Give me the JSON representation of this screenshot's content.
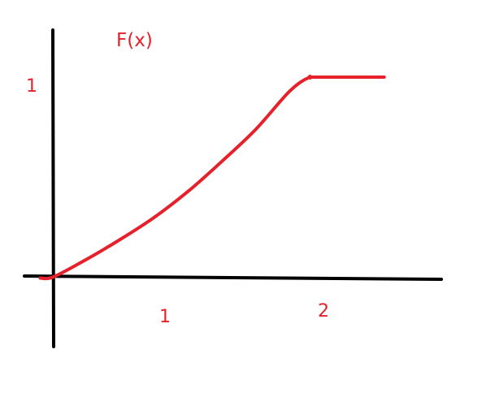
{
  "chart_data": {
    "type": "line",
    "title": "F(x)",
    "xlabel": "",
    "ylabel": "",
    "x_ticks": [
      "1",
      "2"
    ],
    "y_ticks": [
      "1"
    ],
    "xlim": [
      -0.1,
      2.45
    ],
    "ylim": [
      -0.4,
      1.3
    ],
    "grid": false,
    "legend": "none",
    "color": "#e5212c",
    "axis_color": "#000000",
    "series": [
      {
        "style": "solid",
        "x": [
          -0.1,
          0,
          0.25,
          0.5,
          0.75,
          1.0,
          1.25,
          1.5,
          1.75,
          1.9,
          2.0,
          2.2,
          2.4,
          2.45
        ],
        "y": [
          -0.006,
          0,
          0.09,
          0.19,
          0.3,
          0.43,
          0.58,
          0.74,
          0.93,
          1.0,
          1.0,
          1.0,
          1.0,
          1.0
        ]
      }
    ]
  }
}
